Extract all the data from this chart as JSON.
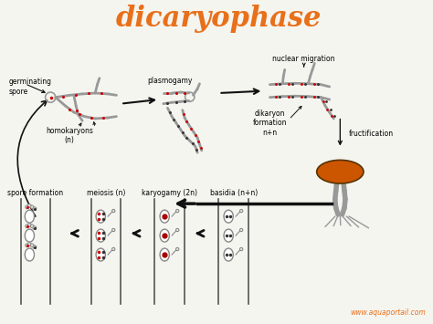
{
  "title": "dicaryophase",
  "title_color": "#E8701A",
  "title_fontsize": 22,
  "background_color": "#F5F5F0",
  "watermark": "www.aquaportail.com",
  "watermark_color": "#E8701A",
  "labels": {
    "germinating_spore": "germinating\nspore",
    "homokaryons": "homokaryons\n(n)",
    "plasmogamy": "plasmogamy",
    "nuclear_migration": "nuclear migration",
    "dikaryon_formation": "dikaryon\nformation\nn+n",
    "fructification": "fructification",
    "spore_formation": "spore formation",
    "meiosis": "meiosis (n)",
    "karyogamy": "karyogamy (2n)",
    "basidia": "basidia (n+n)"
  },
  "dot_color_red": "#CC0000",
  "dot_color_dark": "#333333",
  "mushroom_cap_color": "#CC5500",
  "arrow_color": "#111111",
  "line_color": "#555555",
  "hypha_color": "#888888"
}
